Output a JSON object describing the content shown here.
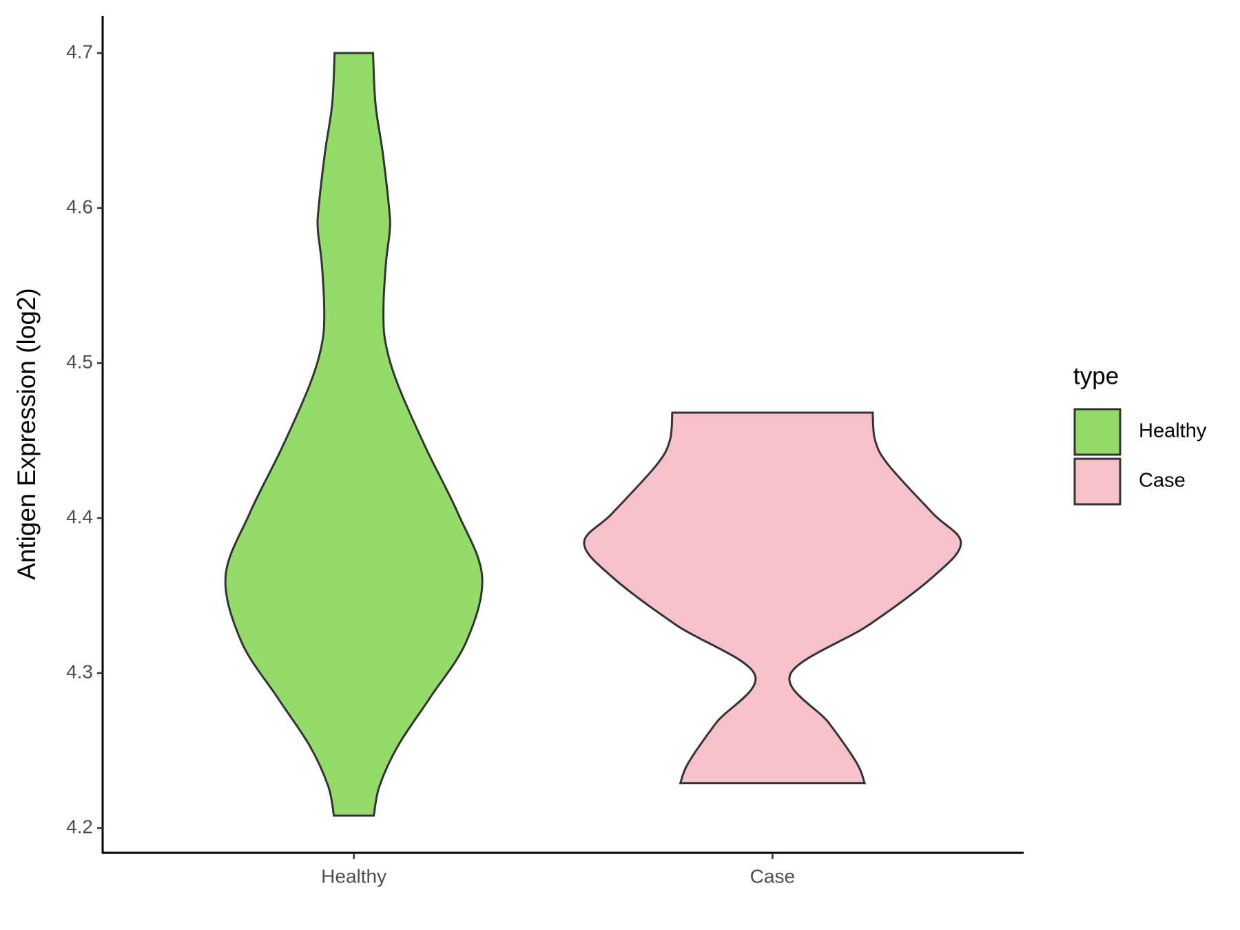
{
  "chart_data": {
    "type": "violin",
    "y_label": "Antigen Expression (log2)",
    "categories": [
      "Healthy",
      "Case"
    ],
    "legend_title": "type",
    "series": [
      {
        "name": "Healthy",
        "color": "#94dc6a",
        "y": [
          4.7,
          4.667,
          4.636,
          4.6,
          4.586,
          4.564,
          4.533,
          4.512,
          4.486,
          4.445,
          4.403,
          4.362,
          4.32,
          4.284,
          4.253,
          4.227,
          4.208
        ],
        "density": [
          0.102,
          0.115,
          0.153,
          0.187,
          0.191,
          0.17,
          0.157,
          0.17,
          0.234,
          0.383,
          0.553,
          0.681,
          0.596,
          0.404,
          0.234,
          0.136,
          0.106
        ]
      },
      {
        "name": "Case",
        "color": "#f7c0cb",
        "y": [
          4.468,
          4.45,
          4.434,
          4.403,
          4.384,
          4.362,
          4.331,
          4.299,
          4.268,
          4.242,
          4.229
        ],
        "density": [
          0.532,
          0.545,
          0.617,
          0.851,
          1,
          0.851,
          0.511,
          0.094,
          0.298,
          0.447,
          0.489
        ]
      }
    ],
    "ylim": [
      4.184,
      4.724
    ],
    "yticks": [
      4.2,
      4.3,
      4.4,
      4.5,
      4.6,
      4.7
    ],
    "grid": false,
    "legend_position": "right"
  }
}
